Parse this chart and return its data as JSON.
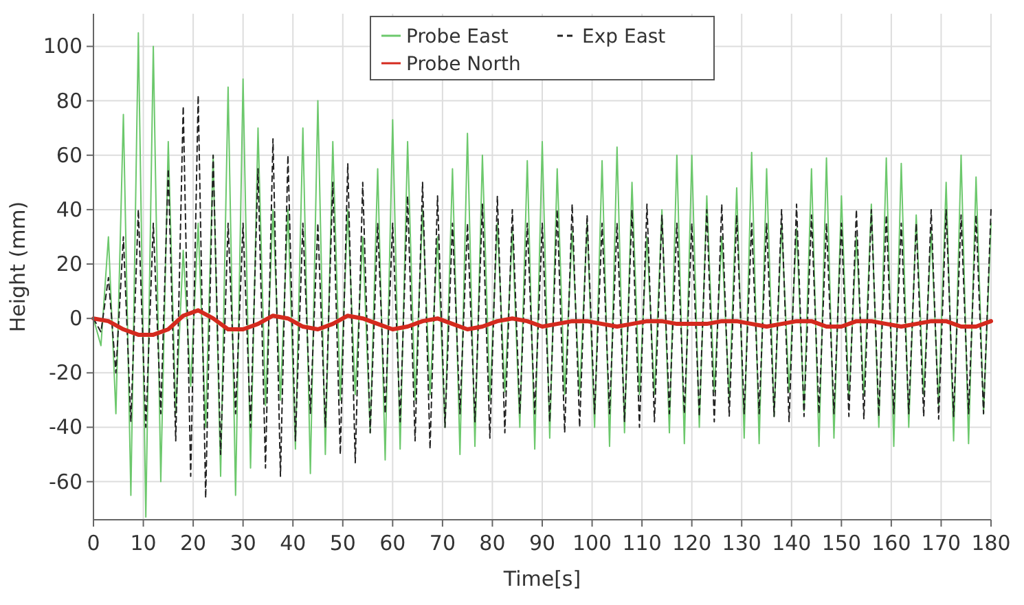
{
  "chart_data": {
    "type": "line",
    "xlabel": "Time[s]",
    "ylabel": "Height (mm)",
    "x": [
      0,
      1.5,
      3,
      4.5,
      6,
      7.5,
      9,
      10.5,
      12,
      13.5,
      15,
      16.5,
      18,
      19.5,
      21,
      22.5,
      24,
      25.5,
      27,
      28.5,
      30,
      31.5,
      33,
      34.5,
      36,
      37.5,
      39,
      40.5,
      42,
      43.5,
      45,
      46.5,
      48,
      49.5,
      51,
      52.5,
      54,
      55.5,
      57,
      58.5,
      60,
      61.5,
      63,
      64.5,
      66,
      67.5,
      69,
      70.5,
      72,
      73.5,
      75,
      76.5,
      78,
      79.5,
      81,
      82.5,
      84,
      85.5,
      87,
      88.5,
      90,
      91.5,
      93,
      94.5,
      96,
      97.5,
      99,
      100.5,
      102,
      103.5,
      105,
      106.5,
      108,
      109.5,
      111,
      112.5,
      114,
      115.5,
      117,
      118.5,
      120,
      121.5,
      123,
      124.5,
      126,
      127.5,
      129,
      130.5,
      132,
      133.5,
      135,
      136.5,
      138,
      139.5,
      141,
      142.5,
      144,
      145.5,
      147,
      148.5,
      150,
      151.5,
      153,
      154.5,
      156,
      157.5,
      159,
      160.5,
      162,
      163.5,
      165,
      166.5,
      168,
      169.5,
      171,
      172.5,
      174,
      175.5,
      177,
      178.5,
      180
    ],
    "series": [
      {
        "name": "Probe East",
        "color": "#6cc86c",
        "line_style": "solid",
        "values": [
          0,
          -10,
          30,
          -35,
          75,
          -65,
          105,
          -73,
          100,
          -60,
          65,
          -35,
          25,
          -25,
          35,
          -40,
          60,
          -58,
          85,
          -65,
          88,
          -55,
          70,
          -32,
          40,
          -30,
          40,
          -48,
          70,
          -57,
          80,
          -50,
          65,
          -30,
          40,
          -28,
          30,
          -42,
          55,
          -52,
          73,
          -48,
          65,
          -30,
          40,
          -28,
          30,
          -40,
          55,
          -50,
          68,
          -47,
          60,
          -30,
          35,
          -27,
          32,
          -40,
          58,
          -48,
          65,
          -44,
          55,
          -28,
          32,
          -28,
          35,
          -40,
          58,
          -47,
          63,
          -42,
          50,
          -28,
          30,
          -28,
          40,
          -42,
          60,
          -46,
          60,
          -40,
          45,
          -27,
          30,
          -30,
          48,
          -44,
          61,
          -46,
          55,
          -36,
          35,
          -27,
          33,
          -34,
          55,
          -47,
          59,
          -44,
          45,
          -30,
          30,
          -28,
          42,
          -40,
          59,
          -47,
          57,
          -40,
          38,
          -28,
          32,
          -32,
          50,
          -45,
          60,
          -46,
          52,
          -35,
          35
        ]
      },
      {
        "name": "Exp East",
        "color": "#222222",
        "line_style": "dashed",
        "values": [
          0,
          -5,
          15,
          -20,
          30,
          -38,
          40,
          -40,
          35,
          -35,
          55,
          -45,
          78,
          -58,
          82,
          -66,
          60,
          -50,
          35,
          -35,
          35,
          -40,
          55,
          -55,
          66,
          -58,
          60,
          -45,
          35,
          -35,
          35,
          -40,
          50,
          -50,
          57,
          -53,
          50,
          -42,
          35,
          -35,
          35,
          -38,
          45,
          -45,
          50,
          -48,
          45,
          -40,
          35,
          -35,
          35,
          -38,
          42,
          -44,
          45,
          -42,
          40,
          -35,
          35,
          -35,
          35,
          -38,
          40,
          -42,
          42,
          -40,
          38,
          -35,
          35,
          -35,
          35,
          -38,
          40,
          -40,
          42,
          -38,
          38,
          -35,
          35,
          -35,
          35,
          -36,
          40,
          -38,
          42,
          -36,
          38,
          -35,
          35,
          -35,
          35,
          -36,
          40,
          -38,
          42,
          -36,
          38,
          -35,
          35,
          -35,
          35,
          -36,
          40,
          -37,
          40,
          -36,
          38,
          -35,
          35,
          -35,
          35,
          -36,
          40,
          -37,
          40,
          -36,
          38,
          -35,
          38,
          -35,
          40
        ]
      },
      {
        "name": "Probe North",
        "color": "#d42a1e",
        "line_style": "solid",
        "x": [
          0,
          3,
          6,
          9,
          12,
          15,
          18,
          21,
          24,
          27,
          30,
          33,
          36,
          39,
          42,
          45,
          48,
          51,
          54,
          57,
          60,
          63,
          66,
          69,
          72,
          75,
          78,
          81,
          84,
          87,
          90,
          93,
          96,
          99,
          102,
          105,
          108,
          111,
          114,
          117,
          120,
          123,
          126,
          129,
          132,
          135,
          138,
          141,
          144,
          147,
          150,
          153,
          156,
          159,
          162,
          165,
          168,
          171,
          174,
          177,
          180
        ],
        "values": [
          0,
          -1,
          -4,
          -6,
          -6,
          -4,
          1,
          3,
          0,
          -4,
          -4,
          -2,
          1,
          0,
          -3,
          -4,
          -2,
          1,
          0,
          -2,
          -4,
          -3,
          -1,
          0,
          -2,
          -4,
          -3,
          -1,
          0,
          -1,
          -3,
          -2,
          -1,
          -1,
          -2,
          -3,
          -2,
          -1,
          -1,
          -2,
          -2,
          -2,
          -1,
          -1,
          -2,
          -3,
          -2,
          -1,
          -1,
          -3,
          -3,
          -1,
          -1,
          -2,
          -3,
          -2,
          -1,
          -1,
          -3,
          -3,
          -1
        ]
      }
    ],
    "xlim": [
      0,
      180
    ],
    "xticks": [
      0,
      10,
      20,
      30,
      40,
      50,
      60,
      70,
      80,
      90,
      100,
      110,
      120,
      130,
      140,
      150,
      160,
      170,
      180
    ],
    "ylim": [
      -74,
      112
    ],
    "yticks": [
      -60,
      -40,
      -20,
      0,
      20,
      40,
      60,
      80,
      100
    ],
    "grid": true,
    "legend": "top"
  }
}
